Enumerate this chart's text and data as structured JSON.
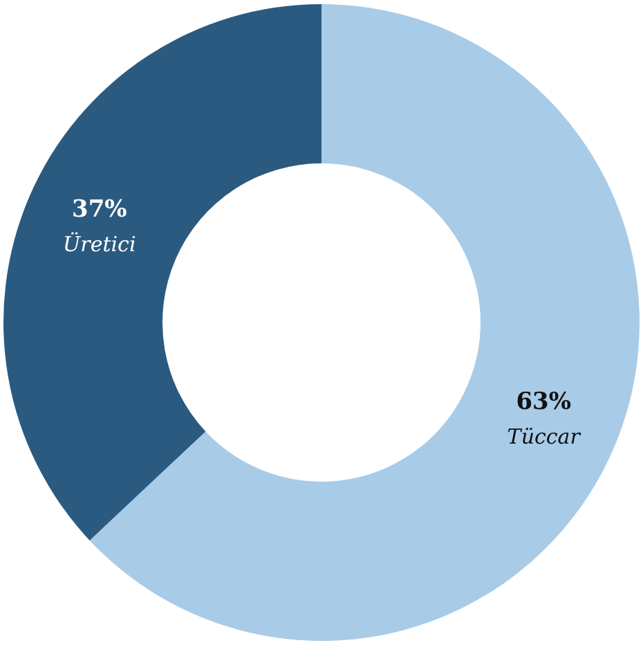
{
  "chart_data": {
    "type": "donut",
    "categories": [
      "Tüccar",
      "Üretici"
    ],
    "values": [
      63,
      37
    ],
    "colors": [
      "#a8cbe8",
      "#2b5a80"
    ],
    "value_labels": [
      "63%",
      "37%"
    ],
    "legend": false
  }
}
